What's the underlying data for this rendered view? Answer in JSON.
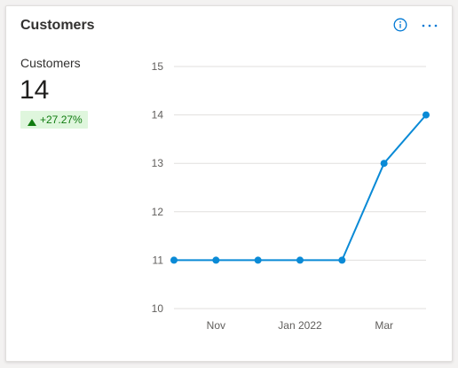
{
  "card": {
    "title": "Customers",
    "info_icon": "info-icon",
    "more_icon": "more-options-icon"
  },
  "metric": {
    "label": "Customers",
    "value": "14",
    "delta": "+27.27%",
    "delta_icon": "triangle-up-icon",
    "delta_color": "#107c10",
    "delta_bg": "#dff6dd"
  },
  "colors": {
    "accent": "#0078d4",
    "series": "#0a8ad6"
  },
  "chart_data": {
    "type": "line",
    "x": [
      "2021-10",
      "2021-11",
      "2021-12",
      "2022-01",
      "2022-02",
      "2022-03",
      "2022-04"
    ],
    "series": [
      {
        "values": [
          11,
          11,
          11,
          11,
          11,
          13,
          14
        ]
      }
    ],
    "x_tick_labels": [
      "Nov",
      "Jan 2022",
      "Mar"
    ],
    "x_tick_positions": [
      1,
      3,
      5
    ],
    "y_ticks": [
      10,
      11,
      12,
      13,
      14,
      15
    ],
    "ylim": [
      10,
      15
    ],
    "grid": true,
    "title": "",
    "xlabel": "",
    "ylabel": ""
  }
}
